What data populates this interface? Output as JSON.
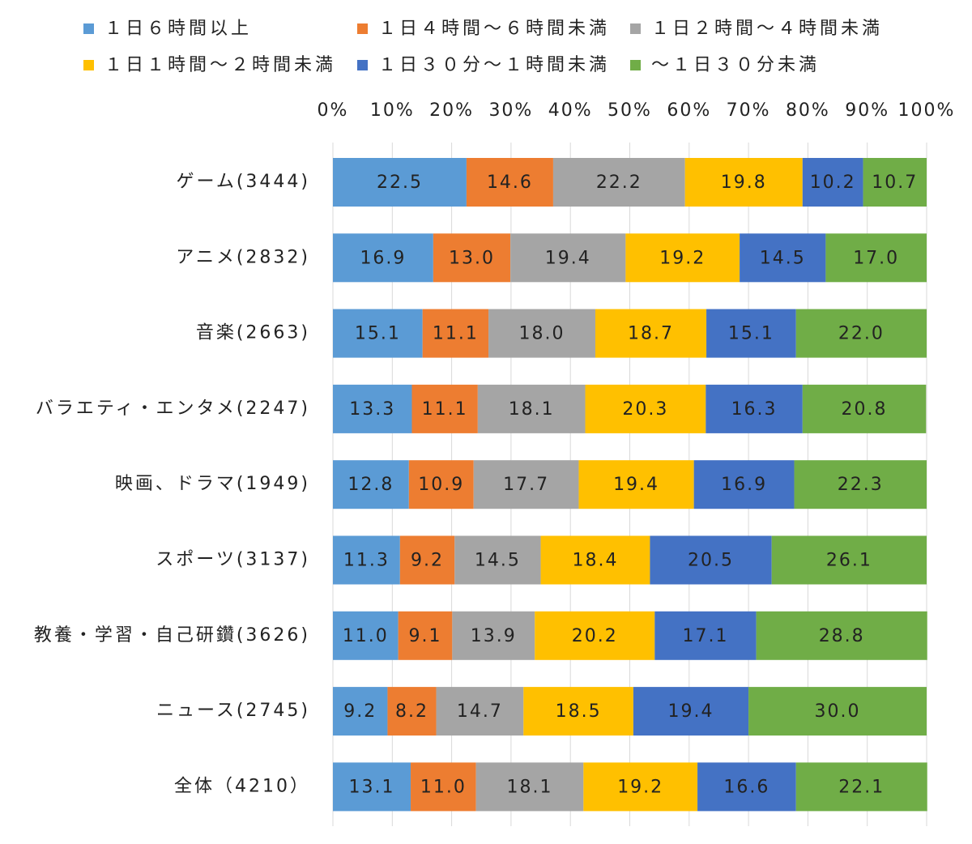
{
  "chart_data": {
    "type": "bar",
    "orientation": "horizontal",
    "stacked": true,
    "percent": true,
    "legend_position": "top",
    "x_axis_position": "top",
    "xlim": [
      0,
      100
    ],
    "ticks": [
      "0%",
      "10%",
      "20%",
      "30%",
      "40%",
      "50%",
      "60%",
      "70%",
      "80%",
      "90%",
      "100%"
    ],
    "grid": true,
    "categories": [
      "ゲーム(3444)",
      "アニメ(2832)",
      "音楽(2663)",
      "バラエティ・エンタメ(2247)",
      "映画、ドラマ(1949)",
      "スポーツ(3137)",
      "教養・学習・自己研鑽(3626)",
      "ニュース(2745)",
      "全体（4210）"
    ],
    "series": [
      {
        "name": "１日６時間以上",
        "color": "#5B9BD5",
        "values": [
          22.5,
          16.9,
          15.1,
          13.3,
          12.8,
          11.3,
          11.0,
          9.2,
          13.1
        ]
      },
      {
        "name": "１日４時間～６時間未満",
        "color": "#ED7D31",
        "values": [
          14.6,
          13.0,
          11.1,
          11.1,
          10.9,
          9.2,
          9.1,
          8.2,
          11.0
        ]
      },
      {
        "name": "１日２時間～４時間未満",
        "color": "#A5A5A5",
        "values": [
          22.2,
          19.4,
          18.0,
          18.1,
          17.7,
          14.5,
          13.9,
          14.7,
          18.1
        ]
      },
      {
        "name": "１日１時間～２時間未満",
        "color": "#FFC000",
        "values": [
          19.8,
          19.2,
          18.7,
          20.3,
          19.4,
          18.4,
          20.2,
          18.5,
          19.2
        ]
      },
      {
        "name": "１日３０分～１時間未満",
        "color": "#4472C4",
        "values": [
          10.2,
          14.5,
          15.1,
          16.3,
          16.9,
          20.5,
          17.1,
          19.4,
          16.6
        ]
      },
      {
        "name": "～１日３０分未満",
        "color": "#70AD47",
        "values": [
          10.7,
          17.0,
          22.0,
          20.8,
          22.3,
          26.1,
          28.8,
          30.0,
          22.1
        ]
      }
    ]
  }
}
